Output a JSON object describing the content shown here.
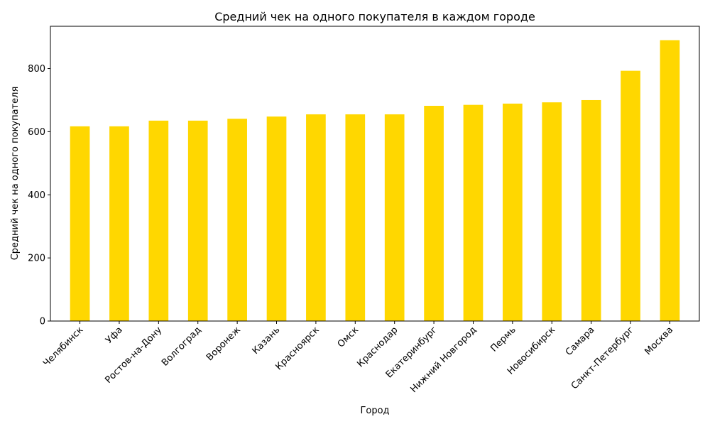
{
  "chart_data": {
    "type": "bar",
    "title": "Средний чек на одного покупателя в каждом городе",
    "xlabel": "Город",
    "ylabel": "Средний чек на одного покупателя",
    "categories": [
      "Челябинск",
      "Уфа",
      "Ростов-на-Дону",
      "Волгоград",
      "Воронеж",
      "Казань",
      "Красноярск",
      "Омск",
      "Краснодар",
      "Екатеринбург",
      "Нижний Новгород",
      "Пермь",
      "Новосибирск",
      "Самара",
      "Санкт-Петербург",
      "Москва"
    ],
    "values": [
      617,
      617,
      635,
      635,
      641,
      648,
      655,
      655,
      655,
      682,
      685,
      689,
      693,
      700,
      793,
      890
    ],
    "ylim": [
      0,
      934
    ],
    "yticks": [
      0,
      200,
      400,
      600,
      800
    ],
    "bar_color": "#FFD700",
    "grid": false,
    "legend": "none"
  }
}
